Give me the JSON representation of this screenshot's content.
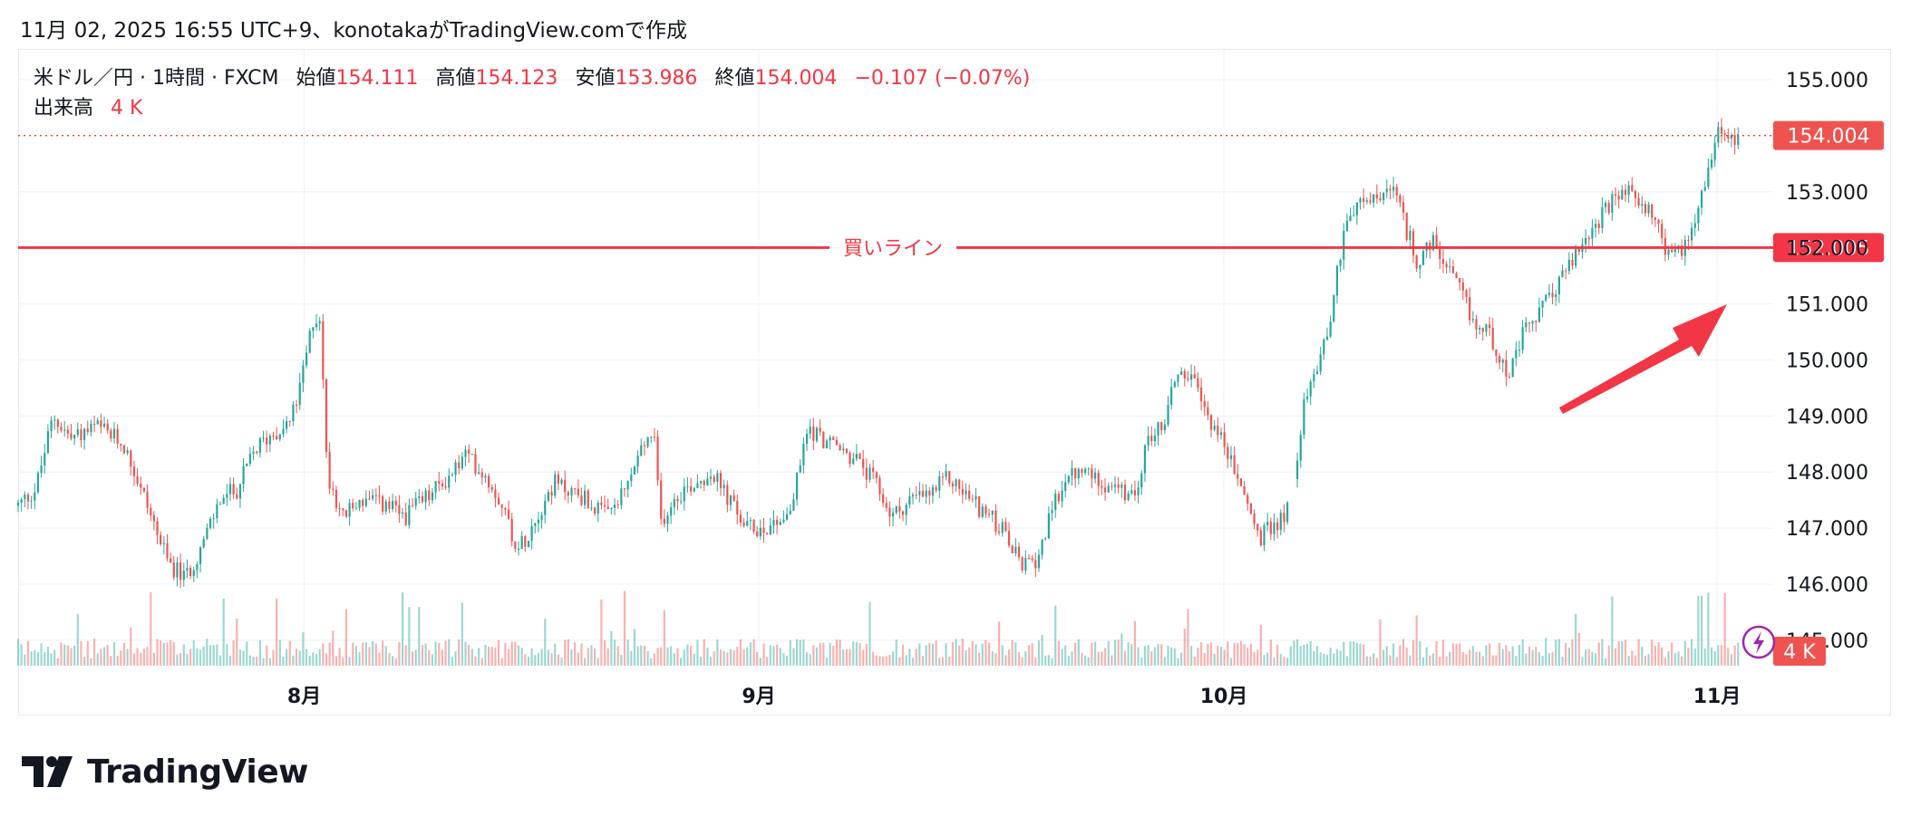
{
  "snapshot_header": "11月 02, 2025 16:55 UTC+9、konotakaがTradingView.comで作成",
  "legend": {
    "symbol": "米ドル／円 · 1時間 · FXCM",
    "open_label": "始値",
    "open_value": "154.111",
    "high_label": "高値",
    "high_value": "154.123",
    "low_label": "安値",
    "low_value": "153.986",
    "close_label": "終値",
    "close_value": "154.004",
    "change": "−0.107 (−0.07%)",
    "volume_label": "出来高",
    "volume_value": "4 K"
  },
  "brand": {
    "name": "TradingView"
  },
  "colors": {
    "up": "#26a69a",
    "down": "#ef5350",
    "line": "#f23645",
    "text": "#131722",
    "axis_text": "#131722",
    "grid": "#f0f3fa",
    "arrow": "#f23645"
  },
  "chart_data": {
    "type": "candlestick",
    "symbol": "USD/JPY",
    "interval": "1時間",
    "y_ticks": [
      "155.000",
      "153.000",
      "152.000",
      "151.000",
      "150.000",
      "149.000",
      "148.000",
      "147.000",
      "146.000",
      "145.000"
    ],
    "y_tick_values": [
      155,
      153,
      152,
      151,
      150,
      149,
      148,
      147,
      146,
      145
    ],
    "ylim": [
      145.0,
      155.8
    ],
    "x_ticks": [
      "8月",
      "9月",
      "10月",
      "11月"
    ],
    "x_tick_index": [
      0.163,
      0.422,
      0.687,
      0.968
    ],
    "price_path": [
      [
        0.0,
        147.4
      ],
      [
        0.01,
        147.7
      ],
      [
        0.02,
        149.0
      ],
      [
        0.03,
        148.6
      ],
      [
        0.045,
        148.8
      ],
      [
        0.06,
        148.5
      ],
      [
        0.075,
        147.3
      ],
      [
        0.085,
        146.4
      ],
      [
        0.095,
        146.1
      ],
      [
        0.105,
        146.7
      ],
      [
        0.115,
        147.5
      ],
      [
        0.125,
        147.7
      ],
      [
        0.135,
        148.4
      ],
      [
        0.145,
        148.7
      ],
      [
        0.155,
        148.9
      ],
      [
        0.16,
        149.4
      ],
      [
        0.168,
        150.7
      ],
      [
        0.172,
        150.8
      ],
      [
        0.176,
        148.0
      ],
      [
        0.185,
        147.2
      ],
      [
        0.195,
        147.5
      ],
      [
        0.21,
        147.4
      ],
      [
        0.22,
        147.2
      ],
      [
        0.235,
        147.6
      ],
      [
        0.245,
        147.9
      ],
      [
        0.255,
        148.3
      ],
      [
        0.265,
        148.0
      ],
      [
        0.275,
        147.5
      ],
      [
        0.285,
        146.6
      ],
      [
        0.295,
        147.2
      ],
      [
        0.305,
        147.8
      ],
      [
        0.32,
        147.6
      ],
      [
        0.335,
        147.2
      ],
      [
        0.345,
        147.6
      ],
      [
        0.355,
        148.4
      ],
      [
        0.362,
        148.7
      ],
      [
        0.366,
        147.1
      ],
      [
        0.375,
        147.6
      ],
      [
        0.385,
        147.8
      ],
      [
        0.395,
        148.0
      ],
      [
        0.405,
        147.5
      ],
      [
        0.415,
        147.0
      ],
      [
        0.425,
        147.0
      ],
      [
        0.44,
        147.3
      ],
      [
        0.45,
        148.8
      ],
      [
        0.458,
        148.6
      ],
      [
        0.468,
        148.4
      ],
      [
        0.478,
        148.2
      ],
      [
        0.488,
        147.8
      ],
      [
        0.498,
        147.2
      ],
      [
        0.508,
        147.5
      ],
      [
        0.52,
        147.6
      ],
      [
        0.53,
        147.9
      ],
      [
        0.54,
        147.6
      ],
      [
        0.55,
        147.3
      ],
      [
        0.56,
        147.0
      ],
      [
        0.57,
        146.4
      ],
      [
        0.578,
        146.3
      ],
      [
        0.585,
        146.9
      ],
      [
        0.595,
        147.8
      ],
      [
        0.605,
        148.0
      ],
      [
        0.615,
        147.9
      ],
      [
        0.625,
        147.7
      ],
      [
        0.635,
        147.5
      ],
      [
        0.645,
        148.7
      ],
      [
        0.652,
        148.8
      ],
      [
        0.66,
        149.8
      ],
      [
        0.668,
        149.7
      ],
      [
        0.676,
        149.1
      ],
      [
        0.684,
        148.7
      ],
      [
        0.692,
        148.1
      ],
      [
        0.7,
        147.5
      ],
      [
        0.707,
        146.8
      ],
      [
        0.714,
        147.0
      ],
      [
        0.72,
        147.2
      ],
      [
        0.725,
        147.4
      ],
      [
        0.732,
        149.1
      ],
      [
        0.74,
        149.9
      ],
      [
        0.748,
        150.8
      ],
      [
        0.756,
        152.5
      ],
      [
        0.766,
        152.8
      ],
      [
        0.776,
        152.9
      ],
      [
        0.784,
        153.0
      ],
      [
        0.79,
        152.4
      ],
      [
        0.798,
        151.7
      ],
      [
        0.806,
        152.1
      ],
      [
        0.814,
        151.6
      ],
      [
        0.822,
        151.2
      ],
      [
        0.83,
        150.6
      ],
      [
        0.838,
        150.5
      ],
      [
        0.844,
        150.1
      ],
      [
        0.85,
        149.7
      ],
      [
        0.858,
        150.5
      ],
      [
        0.866,
        150.8
      ],
      [
        0.874,
        151.2
      ],
      [
        0.882,
        151.6
      ],
      [
        0.89,
        152.0
      ],
      [
        0.898,
        152.4
      ],
      [
        0.906,
        152.7
      ],
      [
        0.914,
        153.0
      ],
      [
        0.922,
        152.9
      ],
      [
        0.93,
        152.7
      ],
      [
        0.938,
        152.0
      ],
      [
        0.946,
        151.9
      ],
      [
        0.952,
        152.2
      ],
      [
        0.958,
        152.9
      ],
      [
        0.963,
        153.4
      ],
      [
        0.968,
        154.2
      ],
      [
        0.974,
        154.0
      ],
      [
        0.98,
        154.0
      ]
    ],
    "gap_after_index": 0.726,
    "horizontal_lines": [
      {
        "label": "買いライン",
        "value": 152.005,
        "value_label": "152.005"
      }
    ],
    "last_price": {
      "value": 154.004,
      "label": "154.004"
    },
    "volume": {
      "last_label": "4 K"
    },
    "annotation": {
      "type": "arrow",
      "direction": "up-right"
    }
  }
}
